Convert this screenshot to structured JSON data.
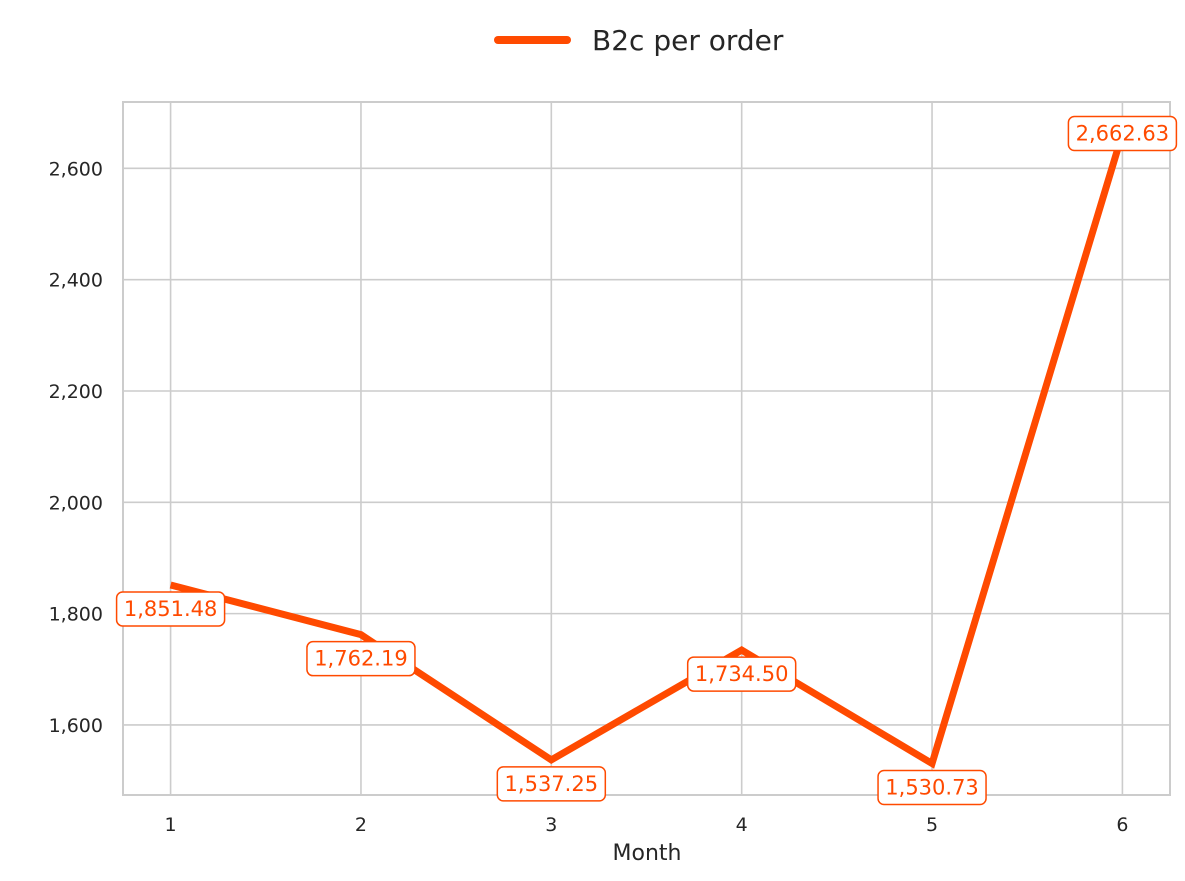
{
  "chart_data": {
    "type": "line",
    "x": [
      1,
      2,
      3,
      4,
      5,
      6
    ],
    "series": [
      {
        "name": "B2c per order",
        "values": [
          1851.48,
          1762.19,
          1537.25,
          1734.5,
          1530.73,
          2662.63
        ],
        "labels": [
          "1,851.48",
          "1,762.19",
          "1,537.25",
          "1,734.50",
          "1,530.73",
          "2,662.63"
        ]
      }
    ],
    "xticks": [
      "1",
      "2",
      "3",
      "4",
      "5",
      "6"
    ],
    "yticks": [
      1600,
      1800,
      2000,
      2200,
      2400,
      2600
    ],
    "ytick_labels": [
      "1,600",
      "1,800",
      "2,000",
      "2,200",
      "2,400",
      "2,600"
    ],
    "xlabel": "Month",
    "ylabel": "",
    "xlim": [
      0.75,
      6.25
    ],
    "ylim": [
      1474.13,
      2719.23
    ],
    "grid": true,
    "legend_position": "top-center",
    "colors": {
      "line": "#ff4a00",
      "grid": "#cccccc",
      "frame": "#cccccc",
      "text": "#262626",
      "label_box": "#ffffff"
    }
  }
}
